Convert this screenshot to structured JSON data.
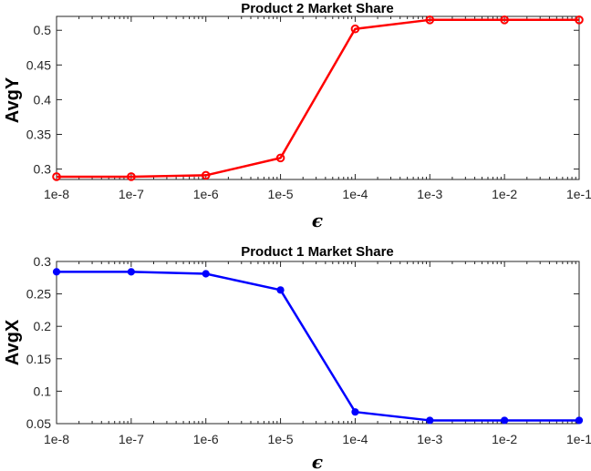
{
  "chart_data": [
    {
      "type": "line",
      "title": "Product 2 Market Share",
      "xlabel": "ϵ",
      "ylabel": "AvgY",
      "x_scale": "log",
      "x": [
        "1e-8",
        "1e-7",
        "1e-6",
        "1e-5",
        "1e-4",
        "1e-3",
        "1e-2",
        "1e-1"
      ],
      "x_values": [
        1e-08,
        1e-07,
        1e-06,
        1e-05,
        0.0001,
        0.001,
        0.01,
        0.1
      ],
      "xlim": [
        1e-08,
        0.1
      ],
      "ylim": [
        0.285,
        0.52
      ],
      "yticks": [
        0.3,
        0.35,
        0.4,
        0.45,
        0.5
      ],
      "ytick_labels": [
        "0.3",
        "0.35",
        "0.4",
        "0.45",
        "0.5"
      ],
      "grid": false,
      "series": [
        {
          "color": "#ff0000",
          "marker": "open-circle",
          "values": [
            0.289,
            0.289,
            0.291,
            0.316,
            0.502,
            0.515,
            0.515,
            0.515
          ]
        }
      ]
    },
    {
      "type": "line",
      "title": "Product 1 Market Share",
      "xlabel": "ϵ",
      "ylabel": "AvgX",
      "x_scale": "log",
      "x": [
        "1e-8",
        "1e-7",
        "1e-6",
        "1e-5",
        "1e-4",
        "1e-3",
        "1e-2",
        "1e-1"
      ],
      "x_values": [
        1e-08,
        1e-07,
        1e-06,
        1e-05,
        0.0001,
        0.001,
        0.01,
        0.1
      ],
      "xlim": [
        1e-08,
        0.1
      ],
      "ylim": [
        0.05,
        0.3
      ],
      "yticks": [
        0.05,
        0.1,
        0.15,
        0.2,
        0.25,
        0.3
      ],
      "ytick_labels": [
        "0.05",
        "0.1",
        "0.15",
        "0.2",
        "0.25",
        "0.3"
      ],
      "grid": false,
      "series": [
        {
          "color": "#0000ff",
          "marker": "filled-circle",
          "values": [
            0.284,
            0.284,
            0.281,
            0.256,
            0.068,
            0.055,
            0.055,
            0.055
          ]
        }
      ]
    }
  ]
}
